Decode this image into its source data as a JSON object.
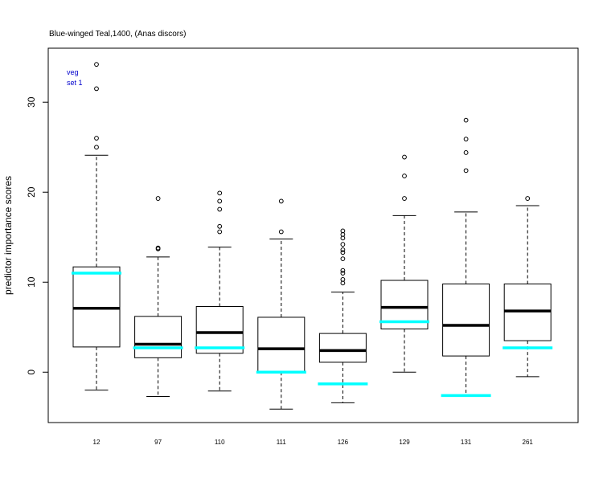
{
  "chart_data": {
    "type": "boxplot",
    "title": "Blue-winged Teal,1400, (Anas discors)",
    "xlabel": "",
    "ylabel": "predictor importance scores",
    "ylim": [
      -5.6,
      36.0
    ],
    "yticks": [
      0,
      10,
      20,
      30
    ],
    "grid": false,
    "legend": "none",
    "annotations": [
      "veg",
      "set 1"
    ],
    "colors": {
      "box": "#000000",
      "reference": "#00ffff",
      "annotation": "#0000cc"
    },
    "categories": [
      "12",
      "97",
      "110",
      "111",
      "126",
      "129",
      "131",
      "261"
    ],
    "boxes": [
      {
        "category": "12",
        "whisker_low": -2.0,
        "q1": 2.8,
        "median": 7.1,
        "q3": 11.7,
        "whisker_high": 24.1,
        "outliers": [
          25.0,
          26.0,
          31.5,
          34.2
        ],
        "reference": 11.0
      },
      {
        "category": "97",
        "whisker_low": -2.7,
        "q1": 1.6,
        "median": 3.1,
        "q3": 6.2,
        "whisker_high": 12.8,
        "outliers": [
          13.7,
          13.8,
          19.3
        ],
        "reference": 2.7
      },
      {
        "category": "110",
        "whisker_low": -2.1,
        "q1": 2.1,
        "median": 4.4,
        "q3": 7.3,
        "whisker_high": 13.9,
        "outliers": [
          15.6,
          16.2,
          18.1,
          19.0,
          19.9
        ],
        "reference": 2.7
      },
      {
        "category": "111",
        "whisker_low": -4.1,
        "q1": 0.0,
        "median": 2.6,
        "q3": 6.1,
        "whisker_high": 14.8,
        "outliers": [
          15.6,
          19.0
        ],
        "reference": 0.0
      },
      {
        "category": "126",
        "whisker_low": -3.4,
        "q1": 1.1,
        "median": 2.4,
        "q3": 4.3,
        "whisker_high": 8.9,
        "outliers": [
          9.9,
          10.3,
          11.0,
          11.3,
          12.6,
          13.3,
          13.6,
          14.2,
          14.9,
          15.3,
          15.7
        ],
        "reference": -1.3
      },
      {
        "category": "129",
        "whisker_low": 0.0,
        "q1": 4.8,
        "median": 7.2,
        "q3": 10.2,
        "whisker_high": 17.4,
        "outliers": [
          19.3,
          21.8,
          23.9
        ],
        "reference": 5.6
      },
      {
        "category": "131",
        "whisker_low": -2.7,
        "q1": 1.8,
        "median": 5.2,
        "q3": 9.8,
        "whisker_high": 17.8,
        "outliers": [
          22.4,
          24.4,
          25.9,
          28.0
        ],
        "reference": -2.6
      },
      {
        "category": "261",
        "whisker_low": -0.5,
        "q1": 3.5,
        "median": 6.8,
        "q3": 9.8,
        "whisker_high": 18.5,
        "outliers": [
          19.3
        ],
        "reference": 2.7
      }
    ]
  }
}
